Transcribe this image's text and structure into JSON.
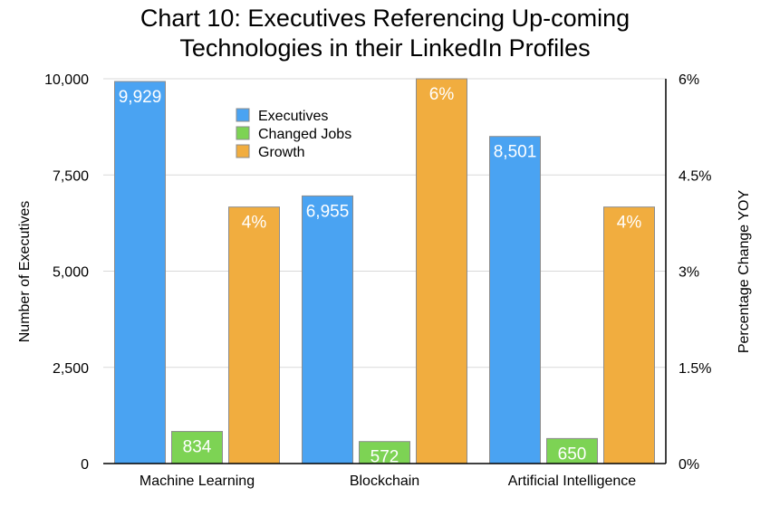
{
  "chart_data": {
    "type": "bar",
    "title_lines": [
      "Chart 10: Executives Referencing Up-coming",
      "Technologies in their LinkedIn Profiles"
    ],
    "categories": [
      "Machine Learning",
      "Blockchain",
      "Artificial Intelligence"
    ],
    "series": [
      {
        "name": "Executives",
        "axis": "left",
        "values": [
          9929,
          6955,
          8501
        ],
        "labels": [
          "9,929",
          "6,955",
          "8,501"
        ],
        "color": "#4aa3f2"
      },
      {
        "name": "Changed Jobs",
        "axis": "left",
        "values": [
          834,
          572,
          650
        ],
        "labels": [
          "834",
          "572",
          "650"
        ],
        "color": "#7dd354"
      },
      {
        "name": "Growth",
        "axis": "right",
        "values": [
          4,
          6,
          4
        ],
        "labels": [
          "4%",
          "6%",
          "4%"
        ],
        "color": "#f1ad3f"
      }
    ],
    "ylabel": "Number of Executives",
    "y2label": "Percentage Change YOY",
    "ylim": [
      0,
      10000
    ],
    "y2lim": [
      0,
      6
    ],
    "yticks": [
      0,
      2500,
      5000,
      7500,
      10000
    ],
    "ytick_labels": [
      "0",
      "2,500",
      "5,000",
      "7,500",
      "10,000"
    ],
    "y2ticks": [
      0,
      1.5,
      3,
      4.5,
      6
    ],
    "y2tick_labels": [
      "0%",
      "1.5%",
      "3%",
      "4.5%",
      "6%"
    ],
    "grid": true,
    "legend_position": "top-center"
  }
}
